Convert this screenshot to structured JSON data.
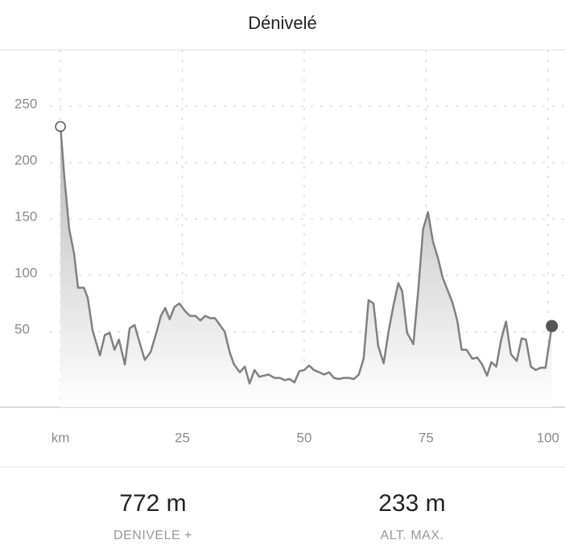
{
  "chart_data": {
    "type": "line",
    "title": "Dénivelé",
    "x": [
      0,
      0.8,
      1.8,
      2.8,
      3.6,
      4.8,
      5.6,
      6.6,
      8.1,
      9.1,
      10.1,
      11.1,
      12.0,
      13.2,
      14.2,
      15.2,
      16.2,
      17.3,
      18.5,
      19.8,
      20.6,
      21.5,
      22.4,
      23.4,
      24.4,
      25.6,
      26.6,
      27.7,
      28.7,
      29.7,
      30.7,
      31.7,
      32.7,
      33.7,
      34.7,
      35.6,
      36.8,
      37.8,
      38.8,
      39.8,
      40.8,
      41.7,
      42.7,
      43.9,
      45.0,
      46.0,
      47.0,
      48.0,
      49.0,
      50.0,
      51.0,
      52.0,
      53.1,
      54.1,
      55.1,
      56.1,
      57.1,
      58.1,
      59.2,
      60.2,
      61.2,
      62.2,
      63.2,
      64.2,
      65.2,
      66.3,
      67.3,
      68.3,
      69.3,
      70.1,
      71.1,
      72.4,
      73.4,
      74.4,
      75.4,
      76.4,
      77.4,
      78.4,
      79.4,
      80.4,
      81.4,
      82.3,
      83.3,
      84.5,
      85.5,
      86.5,
      87.5,
      88.4,
      89.4,
      90.4,
      91.4,
      92.4,
      93.6,
      94.6,
      95.5,
      96.5,
      97.5,
      98.5,
      99.5,
      100.8
    ],
    "values": [
      232,
      187,
      141,
      119,
      89,
      89,
      80,
      51,
      29,
      47,
      49,
      34,
      43,
      21,
      53,
      56,
      41,
      25,
      32,
      51,
      64,
      71,
      61,
      72,
      75,
      68,
      64,
      64,
      60,
      64,
      62,
      62,
      56,
      50,
      32,
      21,
      14,
      19,
      4,
      16,
      10,
      11,
      12,
      9,
      9,
      7,
      8,
      5,
      15,
      16,
      20,
      16,
      14,
      12,
      14,
      9,
      8,
      9,
      9,
      8,
      12,
      26,
      78,
      75,
      37,
      22,
      50,
      73,
      93,
      86,
      49,
      39,
      87,
      141,
      156,
      130,
      116,
      98,
      87,
      76,
      60,
      34,
      34,
      26,
      27,
      21,
      11,
      23,
      19,
      43,
      59,
      30,
      24,
      44,
      43,
      19,
      16,
      18,
      18,
      55
    ],
    "color": "#808080",
    "xlim": [
      -12.4,
      103.5
    ],
    "xticks": [
      {
        "value": 0,
        "label": "km"
      },
      25,
      50,
      75,
      100
    ],
    "ylim": [
      -17,
      300
    ],
    "yticks": [
      50,
      100,
      150,
      200,
      250
    ],
    "grid": true
  },
  "stats": [
    {
      "value": "772 m",
      "label": "DENIVELE +"
    },
    {
      "value": "233 m",
      "label": "ALT. MAX."
    }
  ]
}
